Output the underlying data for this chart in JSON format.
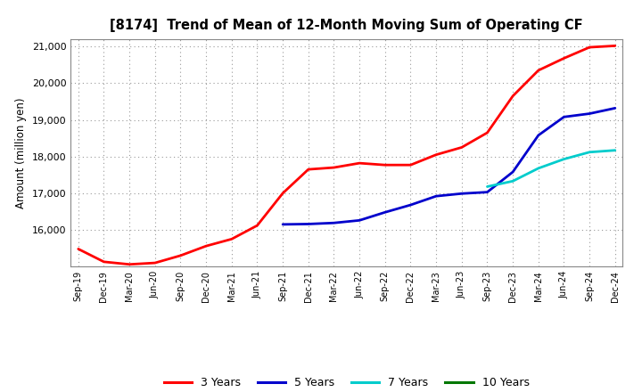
{
  "title": "[8174]  Trend of Mean of 12-Month Moving Sum of Operating CF",
  "ylabel": "Amount (million yen)",
  "ylim": [
    15000,
    21200
  ],
  "yticks": [
    16000,
    17000,
    18000,
    19000,
    20000,
    21000
  ],
  "background_color": "#ffffff",
  "grid_color": "#999999",
  "x_labels": [
    "Sep-19",
    "Dec-19",
    "Mar-20",
    "Jun-20",
    "Sep-20",
    "Dec-20",
    "Mar-21",
    "Jun-21",
    "Sep-21",
    "Dec-21",
    "Mar-22",
    "Jun-22",
    "Sep-22",
    "Dec-22",
    "Mar-23",
    "Jun-23",
    "Sep-23",
    "Dec-23",
    "Mar-24",
    "Jun-24",
    "Sep-24",
    "Dec-24"
  ],
  "series": {
    "3 Years": {
      "color": "#ff0000",
      "data_x": [
        0,
        1,
        2,
        3,
        4,
        5,
        6,
        7,
        8,
        9,
        10,
        11,
        12,
        13,
        14,
        15,
        16,
        17,
        18,
        19,
        20,
        21
      ],
      "data_y": [
        15480,
        15130,
        15060,
        15100,
        15300,
        15560,
        15750,
        16120,
        17000,
        17650,
        17700,
        17820,
        17770,
        17770,
        18050,
        18250,
        18650,
        19650,
        20350,
        20680,
        20980,
        21020
      ]
    },
    "5 Years": {
      "color": "#0000cc",
      "data_x": [
        8,
        9,
        10,
        11,
        12,
        13,
        14,
        15,
        16,
        17,
        18,
        19,
        20,
        21
      ],
      "data_y": [
        16150,
        16160,
        16190,
        16260,
        16480,
        16680,
        16920,
        16990,
        17030,
        17580,
        18580,
        19080,
        19170,
        19320
      ]
    },
    "7 Years": {
      "color": "#00cccc",
      "data_x": [
        16,
        17,
        18,
        19,
        20,
        21
      ],
      "data_y": [
        17180,
        17330,
        17680,
        17930,
        18120,
        18170
      ]
    },
    "10 Years": {
      "color": "#007700",
      "data_x": [],
      "data_y": []
    }
  },
  "legend_labels": [
    "3 Years",
    "5 Years",
    "7 Years",
    "10 Years"
  ],
  "legend_colors": [
    "#ff0000",
    "#0000cc",
    "#00cccc",
    "#007700"
  ]
}
